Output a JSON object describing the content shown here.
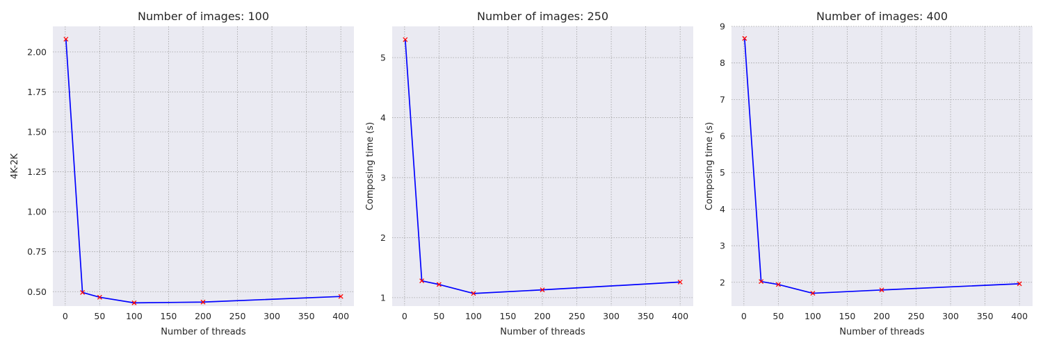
{
  "colors": {
    "line": "#0000ff",
    "marker": "#ff0000",
    "background": "#eaeaf2",
    "grid": "#a0a0a0"
  },
  "chart_data": [
    {
      "type": "line",
      "title": "Number of images: 100",
      "xlabel": "Number of threads",
      "ylabel": "4K-2K",
      "x": [
        1,
        25,
        50,
        100,
        200,
        400
      ],
      "series": [
        {
          "values": [
            2.08,
            0.495,
            0.465,
            0.43,
            0.435,
            0.47
          ]
        }
      ],
      "xlim": [
        -18,
        419
      ],
      "ylim": [
        0.41,
        2.16
      ],
      "xticks": [
        0,
        50,
        100,
        150,
        200,
        250,
        300,
        350,
        400
      ],
      "xtick_labels": [
        "0",
        "50",
        "100",
        "150",
        "200",
        "250",
        "300",
        "350",
        "400"
      ],
      "yticks": [
        0.5,
        0.75,
        1.0,
        1.25,
        1.5,
        1.75,
        2.0
      ],
      "ytick_labels": [
        "0.50",
        "0.75",
        "1.00",
        "1.25",
        "1.50",
        "1.75",
        "2.00"
      ],
      "grid": true,
      "marker": "x"
    },
    {
      "type": "line",
      "title": "Number of images: 250",
      "xlabel": "Number of threads",
      "ylabel": "Composing time (s)",
      "x": [
        1,
        25,
        50,
        100,
        200,
        400
      ],
      "series": [
        {
          "values": [
            5.3,
            1.28,
            1.22,
            1.07,
            1.13,
            1.26
          ]
        }
      ],
      "xlim": [
        -18,
        419
      ],
      "ylim": [
        0.86,
        5.52
      ],
      "xticks": [
        0,
        50,
        100,
        150,
        200,
        250,
        300,
        350,
        400
      ],
      "xtick_labels": [
        "0",
        "50",
        "100",
        "150",
        "200",
        "250",
        "300",
        "350",
        "400"
      ],
      "yticks": [
        1,
        2,
        3,
        4,
        5
      ],
      "ytick_labels": [
        "1",
        "2",
        "3",
        "4",
        "5"
      ],
      "grid": true,
      "marker": "x"
    },
    {
      "type": "line",
      "title": "Number of images: 400",
      "xlabel": "Number of threads",
      "ylabel": "Composing time (s)",
      "x": [
        1,
        25,
        50,
        100,
        200,
        400
      ],
      "series": [
        {
          "values": [
            8.67,
            2.02,
            1.94,
            1.7,
            1.79,
            1.96
          ]
        }
      ],
      "xlim": [
        -18,
        419
      ],
      "ylim": [
        1.35,
        9.0
      ],
      "xticks": [
        0,
        50,
        100,
        150,
        200,
        250,
        300,
        350,
        400
      ],
      "xtick_labels": [
        "0",
        "50",
        "100",
        "150",
        "200",
        "250",
        "300",
        "350",
        "400"
      ],
      "yticks": [
        2,
        3,
        4,
        5,
        6,
        7,
        8,
        9
      ],
      "ytick_labels": [
        "2",
        "3",
        "4",
        "5",
        "6",
        "7",
        "8",
        "9"
      ],
      "grid": true,
      "marker": "x"
    }
  ]
}
